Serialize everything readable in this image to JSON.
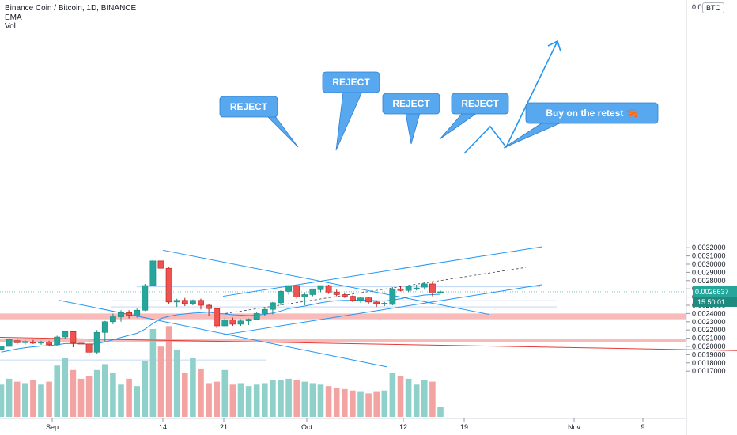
{
  "legend": {
    "title": "Binance Coin / Bitcoin, 1D, BINANCE",
    "indicator_1": "EMA",
    "indicator_2": "Vol"
  },
  "currency_badge": "BTC",
  "colors": {
    "up": "#26a69a",
    "down": "#ef5350",
    "up_dark": "#1f8a80",
    "down_dark": "#b71c1c",
    "blue_line": "#2196f3",
    "zone_blue": "#bbd3f5",
    "zone_red": "#f7a3a3",
    "callout_fill": "#58a8f0",
    "red_trend": "#e53935",
    "price_tag": "#26a69a"
  },
  "chart_data": {
    "type": "candlestick",
    "y_ticks": [
      "0.0032000",
      "0.0031000",
      "0.0030000",
      "0.0029000",
      "0.0028000",
      "0.0027000",
      "0.0026000",
      "0.0025000",
      "0.0024000",
      "0.0023000",
      "0.0022000",
      "0.0021000",
      "0.0020000",
      "0.0019000",
      "0.0018000",
      "0.0017000"
    ],
    "y_top_partial": "0.0",
    "ylim": [
      0.00168,
      0.00337
    ],
    "x_ticks": [
      "Sep",
      "14",
      "21",
      "Oct",
      "12",
      "19",
      "Nov",
      "9"
    ],
    "current_price": "0.0026637",
    "countdown": "15:50:01",
    "callouts": [
      "REJECT",
      "REJECT",
      "REJECT",
      "REJECT",
      "Buy on the retest 🦐"
    ],
    "candles": [
      {
        "o": 0.001965,
        "h": 0.00201,
        "l": 0.00195,
        "c": 0.002005
      },
      {
        "o": 0.002,
        "h": 0.0021,
        "l": 0.00199,
        "c": 0.002085
      },
      {
        "o": 0.00207,
        "h": 0.0021,
        "l": 0.00202,
        "c": 0.002045
      },
      {
        "o": 0.002045,
        "h": 0.00208,
        "l": 0.00202,
        "c": 0.00206
      },
      {
        "o": 0.002055,
        "h": 0.00208,
        "l": 0.00203,
        "c": 0.00204
      },
      {
        "o": 0.00204,
        "h": 0.00207,
        "l": 0.00202,
        "c": 0.002055
      },
      {
        "o": 0.002055,
        "h": 0.00207,
        "l": 0.00201,
        "c": 0.00202
      },
      {
        "o": 0.00202,
        "h": 0.00213,
        "l": 0.00201,
        "c": 0.002115
      },
      {
        "o": 0.002115,
        "h": 0.00219,
        "l": 0.00209,
        "c": 0.00218
      },
      {
        "o": 0.00218,
        "h": 0.00219,
        "l": 0.00199,
        "c": 0.00204
      },
      {
        "o": 0.00204,
        "h": 0.00206,
        "l": 0.00193,
        "c": 0.00203
      },
      {
        "o": 0.00203,
        "h": 0.00208,
        "l": 0.00189,
        "c": 0.00193
      },
      {
        "o": 0.00193,
        "h": 0.0022,
        "l": 0.00191,
        "c": 0.00217
      },
      {
        "o": 0.00217,
        "h": 0.00231,
        "l": 0.00206,
        "c": 0.0023
      },
      {
        "o": 0.0023,
        "h": 0.0024,
        "l": 0.00227,
        "c": 0.00236
      },
      {
        "o": 0.00236,
        "h": 0.00244,
        "l": 0.0023,
        "c": 0.00241
      },
      {
        "o": 0.00241,
        "h": 0.00244,
        "l": 0.00234,
        "c": 0.00238
      },
      {
        "o": 0.00238,
        "h": 0.00246,
        "l": 0.00235,
        "c": 0.00244
      },
      {
        "o": 0.00244,
        "h": 0.00276,
        "l": 0.00243,
        "c": 0.00274
      },
      {
        "o": 0.00274,
        "h": 0.00307,
        "l": 0.00273,
        "c": 0.00304
      },
      {
        "o": 0.00304,
        "h": 0.003165,
        "l": 0.00295,
        "c": 0.00295
      },
      {
        "o": 0.00295,
        "h": 0.00296,
        "l": 0.00252,
        "c": 0.00254
      },
      {
        "o": 0.00254,
        "h": 0.00258,
        "l": 0.00248,
        "c": 0.00256
      },
      {
        "o": 0.00256,
        "h": 0.00259,
        "l": 0.00249,
        "c": 0.00252
      },
      {
        "o": 0.00252,
        "h": 0.00257,
        "l": 0.0025,
        "c": 0.00256
      },
      {
        "o": 0.00256,
        "h": 0.00258,
        "l": 0.00245,
        "c": 0.0025
      },
      {
        "o": 0.0025,
        "h": 0.00252,
        "l": 0.00237,
        "c": 0.00246
      },
      {
        "o": 0.00246,
        "h": 0.00247,
        "l": 0.00222,
        "c": 0.00225
      },
      {
        "o": 0.00225,
        "h": 0.00235,
        "l": 0.00224,
        "c": 0.00232
      },
      {
        "o": 0.00232,
        "h": 0.00235,
        "l": 0.00225,
        "c": 0.00227
      },
      {
        "o": 0.00227,
        "h": 0.00233,
        "l": 0.00225,
        "c": 0.00231
      },
      {
        "o": 0.00231,
        "h": 0.00234,
        "l": 0.00226,
        "c": 0.00233
      },
      {
        "o": 0.00233,
        "h": 0.00242,
        "l": 0.00232,
        "c": 0.0024
      },
      {
        "o": 0.0024,
        "h": 0.00246,
        "l": 0.00237,
        "c": 0.00245
      },
      {
        "o": 0.00245,
        "h": 0.00254,
        "l": 0.00239,
        "c": 0.00253
      },
      {
        "o": 0.00253,
        "h": 0.00268,
        "l": 0.0025,
        "c": 0.00267
      },
      {
        "o": 0.00267,
        "h": 0.002745,
        "l": 0.00263,
        "c": 0.00274
      },
      {
        "o": 0.00274,
        "h": 0.00275,
        "l": 0.00258,
        "c": 0.0026
      },
      {
        "o": 0.0026,
        "h": 0.00266,
        "l": 0.0025,
        "c": 0.00263
      },
      {
        "o": 0.00263,
        "h": 0.0027,
        "l": 0.00261,
        "c": 0.0027
      },
      {
        "o": 0.00269,
        "h": 0.00273,
        "l": 0.00266,
        "c": 0.00274
      },
      {
        "o": 0.00274,
        "h": 0.00275,
        "l": 0.00264,
        "c": 0.00266
      },
      {
        "o": 0.00266,
        "h": 0.00269,
        "l": 0.00261,
        "c": 0.00263
      },
      {
        "o": 0.00263,
        "h": 0.00265,
        "l": 0.00259,
        "c": 0.00261
      },
      {
        "o": 0.00261,
        "h": 0.00262,
        "l": 0.00254,
        "c": 0.00256
      },
      {
        "o": 0.00256,
        "h": 0.0026,
        "l": 0.00253,
        "c": 0.00259
      },
      {
        "o": 0.00259,
        "h": 0.0026,
        "l": 0.00251,
        "c": 0.00254
      },
      {
        "o": 0.00254,
        "h": 0.00256,
        "l": 0.00248,
        "c": 0.00252
      },
      {
        "o": 0.00252,
        "h": 0.00254,
        "l": 0.00249,
        "c": 0.002525
      },
      {
        "o": 0.00251,
        "h": 0.00272,
        "l": 0.0025,
        "c": 0.0027
      },
      {
        "o": 0.0027,
        "h": 0.00273,
        "l": 0.00267,
        "c": 0.00268
      },
      {
        "o": 0.00268,
        "h": 0.00274,
        "l": 0.00266,
        "c": 0.00273
      },
      {
        "o": 0.0027,
        "h": 0.00275,
        "l": 0.00268,
        "c": 0.00271
      },
      {
        "o": 0.00272,
        "h": 0.00278,
        "l": 0.00269,
        "c": 0.00276
      },
      {
        "o": 0.00276,
        "h": 0.00279,
        "l": 0.00261,
        "c": 0.00265
      },
      {
        "o": 0.00266,
        "h": 0.00268,
        "l": 0.00264,
        "c": 0.002664
      }
    ],
    "ema": [
      0.00193,
      0.00195,
      0.00197,
      0.001985,
      0.001995,
      0.002005,
      0.00201,
      0.00202,
      0.002035,
      0.002035,
      0.002035,
      0.002025,
      0.002035,
      0.002055,
      0.00208,
      0.00211,
      0.002135,
      0.00216,
      0.00221,
      0.00228,
      0.00234,
      0.002365,
      0.002385,
      0.002395,
      0.002405,
      0.00241,
      0.002415,
      0.0024,
      0.002395,
      0.002385,
      0.00238,
      0.002375,
      0.00238,
      0.00239,
      0.002405,
      0.00243,
      0.00246,
      0.002475,
      0.00249,
      0.00251,
      0.00253,
      0.002545,
      0.002555,
      0.00256,
      0.00256,
      0.002565,
      0.00256,
      0.002555,
      0.00255,
      0.002565,
      0.00258,
      0.0026,
      0.00261,
      0.002625,
      0.00263,
      0.002635
    ],
    "volume": [
      2.2,
      2.6,
      2.4,
      2.3,
      2.5,
      2.2,
      2.4,
      3.5,
      4.0,
      3.2,
      2.6,
      2.8,
      3.2,
      3.6,
      3.0,
      2.2,
      2.6,
      2.1,
      3.8,
      6.0,
      4.8,
      6.2,
      4.6,
      3.0,
      4.0,
      3.3,
      2.3,
      2.4,
      3.2,
      2.2,
      2.3,
      2.1,
      2.2,
      2.3,
      2.5,
      2.5,
      2.6,
      2.5,
      2.4,
      2.3,
      2.2,
      2.1,
      2.0,
      1.9,
      1.8,
      1.7,
      1.6,
      1.7,
      1.8,
      3.0,
      2.8,
      2.6,
      2.2,
      2.5,
      2.4,
      0.7
    ],
    "volume_colors": [
      "up",
      "up",
      "down",
      "up",
      "down",
      "up",
      "down",
      "up",
      "up",
      "down",
      "down",
      "down",
      "up",
      "up",
      "up",
      "up",
      "down",
      "up",
      "up",
      "up",
      "down",
      "down",
      "up",
      "down",
      "up",
      "down",
      "down",
      "down",
      "up",
      "down",
      "up",
      "up",
      "up",
      "up",
      "up",
      "up",
      "up",
      "down",
      "up",
      "up",
      "up",
      "down",
      "down",
      "down",
      "down",
      "up",
      "down",
      "down",
      "up",
      "up",
      "down",
      "up",
      "up",
      "up",
      "down",
      "up"
    ]
  }
}
